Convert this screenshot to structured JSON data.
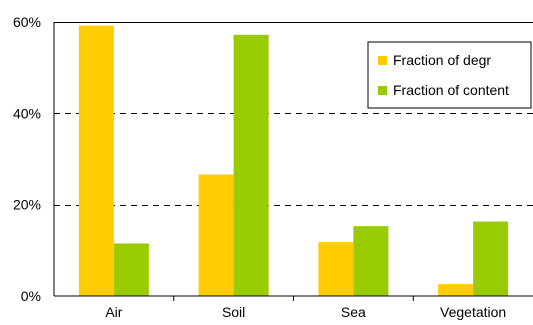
{
  "chart_data": {
    "type": "bar",
    "categories": [
      "Air",
      "Soil",
      "Sea",
      "Vegetation"
    ],
    "series": [
      {
        "name": "Fraction of degr",
        "values": [
          59.2,
          26.6,
          11.8,
          2.6
        ],
        "color": "#FFCC00"
      },
      {
        "name": "Fraction of content",
        "values": [
          11.5,
          57.2,
          15.3,
          16.3
        ],
        "color": "#99CC00"
      }
    ],
    "ylim": [
      0,
      60
    ],
    "yticks": [
      0,
      20,
      40,
      60
    ],
    "ytick_labels": [
      "0%",
      "20%",
      "40%",
      "60%"
    ],
    "grid": "horizontal dashed",
    "legend_position": "top-right"
  }
}
